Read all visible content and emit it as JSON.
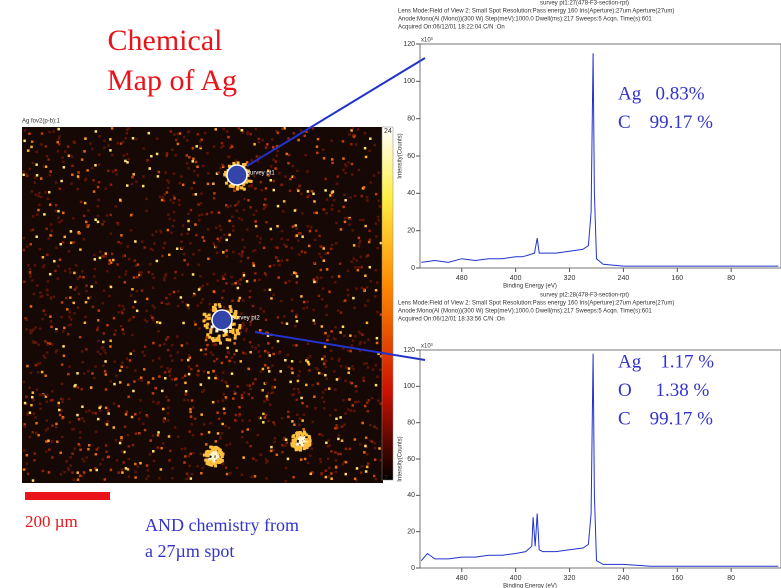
{
  "title": [
    "Chemical",
    "Map of Ag"
  ],
  "map": {
    "title": "Ag fov2(p-b):1",
    "colorbar_max": 24,
    "colorbar_min": 2,
    "markers": [
      "survey pt1",
      "survey pt2"
    ]
  },
  "scale_bar": "200 µm",
  "caption": [
    "AND chemistry from",
    "a 27µm spot"
  ],
  "chart_data": [
    {
      "type": "line",
      "header": [
        "survey pt1:27(478-F3-section-rpt)",
        "Lens Mode:Field of View 2: Small Spot  Resolution:Pass energy 160  Iris(Aperture):27um Aperture(27um)",
        "Anode:Mono(Al (Mono))(300 W)  Step(meV):1000.0  Dwell(ms):217  Sweeps:5  Acqn. Time(s):601",
        "Acquired On:06/12/01 18:22:04  C/N :On"
      ],
      "multiplier": "x10³",
      "xlabel": "Binding Energy (eV)",
      "ylabel": "Intensity(Counts)",
      "x": [
        540,
        520,
        500,
        480,
        460,
        440,
        420,
        400,
        390,
        380,
        372,
        368,
        365,
        360,
        340,
        320,
        300,
        292,
        288,
        285,
        283,
        280,
        270,
        240,
        200,
        160,
        120,
        80,
        40,
        10
      ],
      "series": [
        {
          "color": "#2233cc",
          "values": [
            3,
            4,
            3,
            5,
            4,
            5,
            5,
            6,
            6,
            7,
            8,
            16,
            8,
            8,
            8,
            9,
            10,
            12,
            30,
            115,
            40,
            5,
            2,
            1,
            1,
            1,
            1,
            1,
            1,
            1
          ]
        }
      ],
      "xlim": [
        542,
        6
      ],
      "ylim": [
        0,
        120
      ],
      "xticks": [
        480,
        400,
        320,
        240,
        160,
        80
      ],
      "yticks": [
        0,
        20,
        40,
        60,
        80,
        100,
        120
      ],
      "annotations": [
        "Ag   0.83%",
        "C    99.17 %"
      ]
    },
    {
      "type": "line",
      "header": [
        "survey pt2:28(478-F3-section-rpt)",
        "Lens Mode:Field of View 2: Small Spot  Resolution:Pass energy 160  Iris(Aperture):27um Aperture(27um)",
        "Anode:Mono(Al (Mono))(300 W)  Step(meV):1000.0  Dwell(ms):217  Sweeps:5  Acqn. Time(s):601",
        "Acquired On:06/12/01 18:33:56  C/N :On"
      ],
      "multiplier": "x10³",
      "xlabel": "Binding Energy (eV)",
      "ylabel": "Intensity(Counts)",
      "x": [
        540,
        531,
        520,
        500,
        480,
        460,
        440,
        420,
        400,
        385,
        376,
        374,
        371,
        368,
        365,
        360,
        340,
        320,
        300,
        292,
        288,
        285,
        283,
        280,
        270,
        240,
        200,
        160,
        120,
        80,
        40,
        10
      ],
      "series": [
        {
          "color": "#2233cc",
          "values": [
            4,
            8,
            5,
            5,
            6,
            6,
            7,
            7,
            8,
            9,
            12,
            28,
            12,
            30,
            10,
            9,
            9,
            10,
            11,
            13,
            30,
            118,
            40,
            4,
            2,
            2,
            1,
            1,
            1,
            1,
            1,
            1
          ]
        }
      ],
      "xlim": [
        542,
        6
      ],
      "ylim": [
        0,
        120
      ],
      "xticks": [
        480,
        400,
        320,
        240,
        160,
        80
      ],
      "yticks": [
        0,
        20,
        40,
        60,
        80,
        100,
        120
      ],
      "annotations": [
        "Ag    1.17 %",
        "O     1.38 %",
        "C    99.17 %"
      ]
    }
  ]
}
